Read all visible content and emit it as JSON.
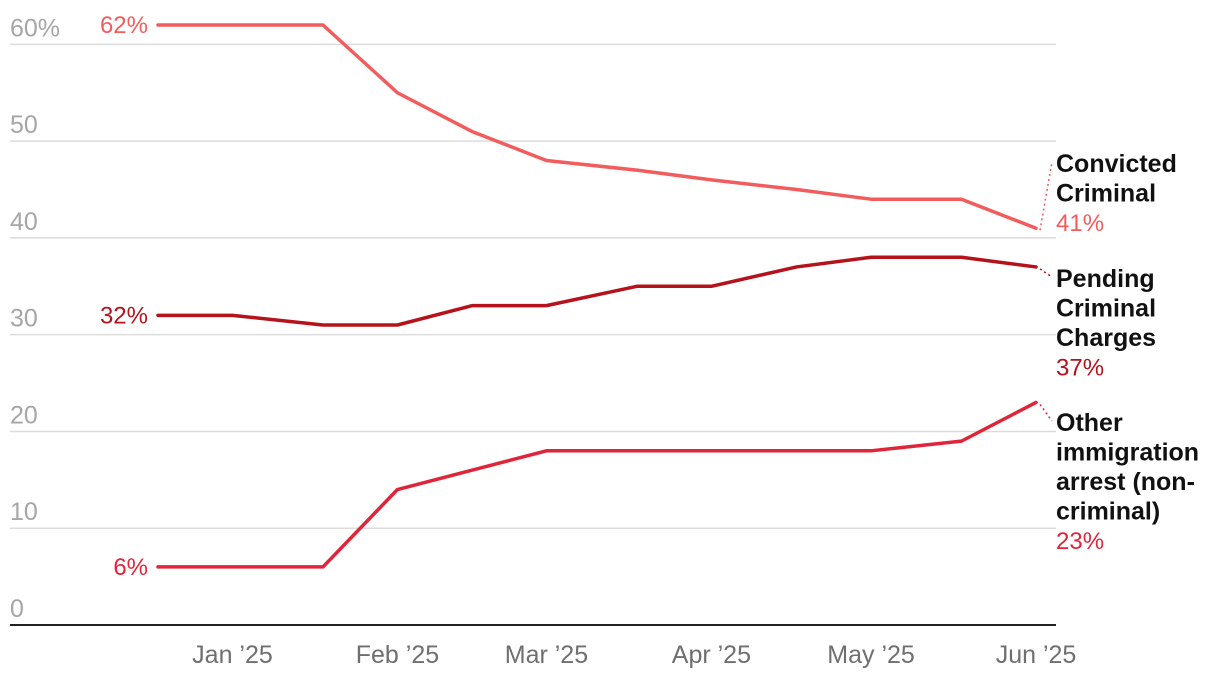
{
  "chart_data": {
    "type": "line",
    "ylim": [
      0,
      62
    ],
    "grid": true,
    "y_ticks": [
      {
        "value": 60,
        "label": "60%"
      },
      {
        "value": 50,
        "label": "50"
      },
      {
        "value": 40,
        "label": "40"
      },
      {
        "value": 30,
        "label": "30"
      },
      {
        "value": 20,
        "label": "20"
      },
      {
        "value": 10,
        "label": "10"
      },
      {
        "value": 0,
        "label": "0"
      }
    ],
    "x_ticks": [
      {
        "value": "2025-01-15",
        "label": "Jan ’25"
      },
      {
        "value": "2025-02-15",
        "label": "Feb ’25"
      },
      {
        "value": "2025-03-15",
        "label": "Mar ’25"
      },
      {
        "value": "2025-04-15",
        "label": "Apr ’25"
      },
      {
        "value": "2025-05-15",
        "label": "May ’25"
      },
      {
        "value": "2025-06-15",
        "label": "Jun ’25"
      }
    ],
    "x": [
      "2025-01-01",
      "2025-01-15",
      "2025-02-01",
      "2025-02-15",
      "2025-03-01",
      "2025-03-15",
      "2025-04-01",
      "2025-04-15",
      "2025-05-01",
      "2025-05-15",
      "2025-06-01",
      "2025-06-15"
    ],
    "series": [
      {
        "name": "Convicted Criminal",
        "name_lines": [
          "Convicted",
          "Criminal"
        ],
        "color": "#f25c5c",
        "start_label": "62%",
        "end_label": "41%",
        "values": [
          62,
          62,
          62,
          55,
          51,
          48,
          47,
          46,
          45,
          44,
          44,
          41
        ]
      },
      {
        "name": "Pending Criminal Charges",
        "name_lines": [
          "Pending",
          "Criminal",
          "Charges"
        ],
        "color": "#b5121b",
        "start_label": "32%",
        "end_label": "37%",
        "values": [
          32,
          32,
          31,
          31,
          33,
          33,
          35,
          35,
          37,
          38,
          38,
          37
        ]
      },
      {
        "name": "Other immigration arrest (non-criminal)",
        "name_lines": [
          "Other",
          "immigration",
          "arrest (non-",
          "criminal)"
        ],
        "color": "#e0243a",
        "start_label": "6%",
        "end_label": "23%",
        "values": [
          6,
          6,
          6,
          14,
          16,
          18,
          18,
          18,
          18,
          18,
          19,
          23
        ]
      }
    ]
  }
}
